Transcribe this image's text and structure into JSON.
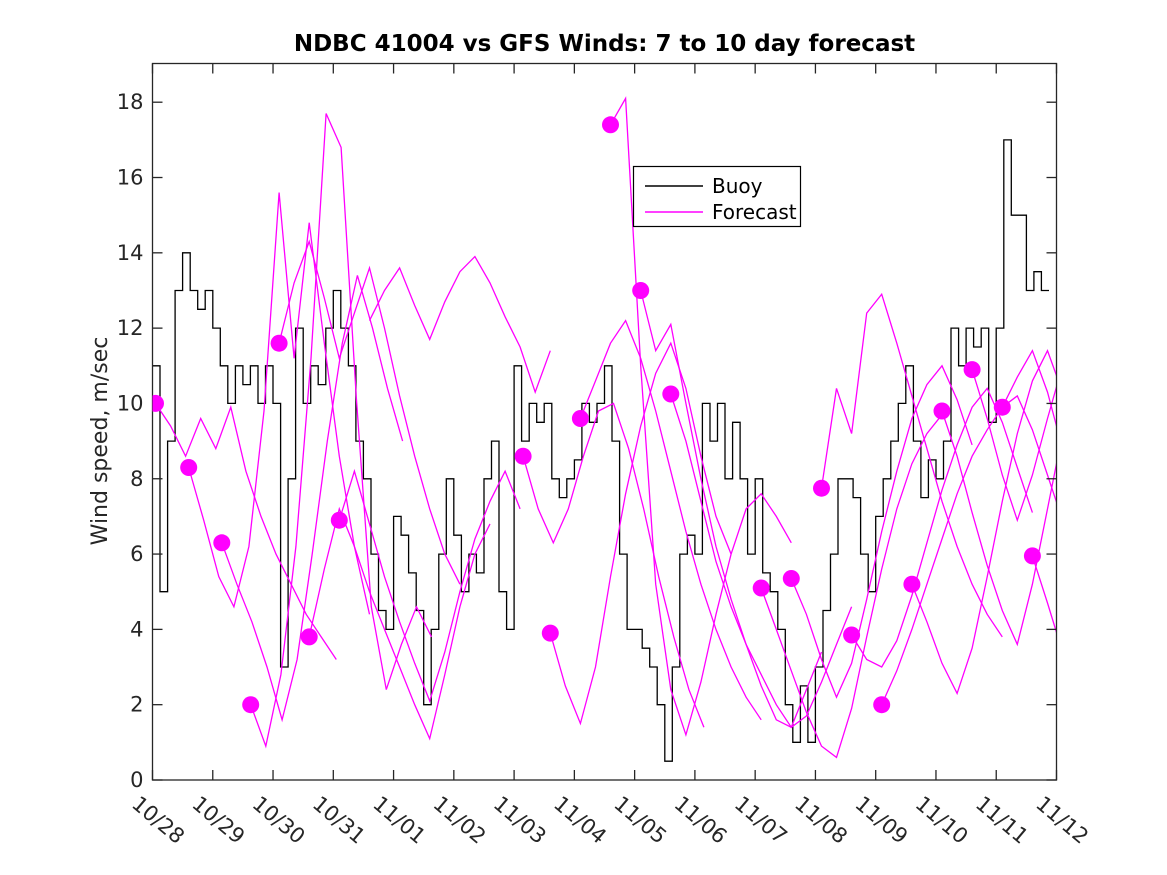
{
  "title": "NDBC 41004 vs GFS Winds: 7 to 10 day forecast",
  "legend": {
    "items": [
      {
        "label": "Buoy",
        "color": "#000000"
      },
      {
        "label": "Forecast",
        "color": "#ff00ff"
      }
    ]
  },
  "axes": {
    "ylabel": "Wind speed, m/sec",
    "xlabel": "",
    "y_ticks": [
      0,
      2,
      4,
      6,
      8,
      10,
      12,
      14,
      16,
      18
    ],
    "x_tick_labels": [
      "10/28",
      "10/29",
      "10/30",
      "10/31",
      "11/01",
      "11/02",
      "11/03",
      "11/04",
      "11/05",
      "11/06",
      "11/07",
      "11/08",
      "11/09",
      "11/10",
      "11/11",
      "11/12"
    ]
  },
  "chart_data": {
    "type": "line",
    "title": "NDBC 41004 vs GFS Winds: 7 to 10 day forecast",
    "xlabel": "",
    "ylabel": "Wind speed, m/sec",
    "ylim": [
      0,
      19
    ],
    "xlim_days": [
      0,
      15
    ],
    "grid": false,
    "legend_position": "upper-center-right",
    "x_axis": {
      "tick_labels": [
        "10/28",
        "10/29",
        "10/30",
        "10/31",
        "11/01",
        "11/02",
        "11/03",
        "11/04",
        "11/05",
        "11/06",
        "11/07",
        "11/08",
        "11/09",
        "11/10",
        "11/11",
        "11/12"
      ],
      "units": "days, ticks every 1 day, labels rotated"
    },
    "buoy": {
      "name": "Buoy",
      "color": "#000000",
      "style": "stairstep",
      "start_day": 0,
      "step_days": 0.125,
      "values": [
        11,
        5,
        9,
        13,
        14,
        13,
        12.5,
        13,
        12,
        11,
        10,
        11,
        10.5,
        11,
        10,
        11,
        10,
        3,
        8,
        12,
        10,
        11,
        10.5,
        12,
        13,
        12,
        11,
        9,
        8,
        6,
        4.5,
        4,
        7,
        6.5,
        5.5,
        4.5,
        2,
        4,
        6,
        8,
        6.5,
        5,
        6,
        5.5,
        8,
        9,
        5,
        4,
        11,
        9,
        10,
        9.5,
        10,
        8,
        7.5,
        8,
        8.5,
        10,
        9.5,
        10,
        11,
        9,
        6,
        4,
        4,
        3.5,
        3,
        2,
        0.5,
        3,
        6,
        6.5,
        6,
        10,
        9,
        10,
        8,
        9.5,
        8,
        6,
        8,
        5.5,
        5,
        4,
        2,
        1,
        2.5,
        1,
        3,
        4.5,
        6,
        8,
        8,
        7.5,
        6,
        5,
        7,
        8,
        9,
        10,
        11,
        9,
        7.5,
        8.5,
        8,
        9,
        12,
        11,
        12,
        11.5,
        12,
        9.5,
        12,
        17,
        15,
        15,
        13,
        13.5,
        13,
        13
      ]
    },
    "forecast": {
      "name": "Forecast",
      "color": "#ff00ff",
      "style": "line-with-start-dot",
      "step_days": 0.25,
      "runs": [
        {
          "start_day": 0.05,
          "dot": true,
          "values": [
            10,
            9.4,
            8.6,
            9.6,
            8.8,
            9.9,
            8.2,
            7,
            6,
            5.2,
            4.4,
            3.8,
            3.2
          ]
        },
        {
          "start_day": 0.6,
          "dot": true,
          "values": [
            8.3,
            6.9,
            5.4,
            4.6,
            6.2,
            9.8,
            15.6,
            11.2,
            14.8,
            11.6,
            8.6,
            6.2,
            4.4
          ]
        },
        {
          "start_day": 1.15,
          "dot": true,
          "values": [
            6.3,
            5.2,
            4.2,
            3,
            1.6,
            3.2,
            6,
            9,
            11.6,
            13.4,
            12,
            10.4,
            9
          ]
        },
        {
          "start_day": 1.63,
          "dot": true,
          "values": [
            2,
            0.9,
            2.8,
            6.2,
            11.2,
            17.7,
            16.8,
            10.2,
            4.6,
            2.4,
            3.6,
            4.6,
            3.8
          ]
        },
        {
          "start_day": 2.1,
          "dot": true,
          "values": [
            11.6,
            13.2,
            14.3,
            12.8,
            11.2,
            12.4,
            13.6,
            12,
            10.2,
            8.6,
            7.2,
            6,
            5.2
          ]
        },
        {
          "start_day": 2.6,
          "dot": true,
          "values": [
            3.8,
            5.6,
            7.2,
            6.2,
            5,
            4,
            3,
            2,
            1.1,
            2.8,
            4.6,
            6,
            6.8
          ]
        },
        {
          "start_day": 3.1,
          "dot": true,
          "values": [
            6.9,
            8.2,
            6.8,
            5.4,
            4.2,
            3.1,
            2.1,
            3.4,
            5,
            6.4,
            7.4,
            8.2,
            7.2
          ]
        },
        {
          "start_day": 3.6,
          "dot": false,
          "values": [
            12.2,
            13,
            13.6,
            12.6,
            11.7,
            12.7,
            13.5,
            13.9,
            13.2,
            12.3,
            11.5,
            10.3,
            11.4
          ]
        },
        {
          "start_day": 6.15,
          "dot": true,
          "values": [
            8.6,
            7.2,
            6.3,
            7.2,
            8.6,
            9.8,
            10,
            8.8,
            7.2,
            5.4,
            3.8,
            2.4,
            1.4
          ]
        },
        {
          "start_day": 6.6,
          "dot": true,
          "values": [
            3.9,
            2.5,
            1.5,
            3,
            5.4,
            7.6,
            9.4,
            10.8,
            11.6,
            10.4,
            8.6,
            7,
            6
          ]
        },
        {
          "start_day": 7.1,
          "dot": true,
          "values": [
            9.6,
            10.6,
            11.6,
            12.2,
            11.2,
            9.8,
            8.2,
            6.6,
            5.2,
            4,
            3,
            2.2,
            1.6
          ]
        },
        {
          "start_day": 7.6,
          "dot": true,
          "values": [
            17.4,
            18.1,
            11,
            5.2,
            2.4,
            1.2,
            2.6,
            4.4,
            6,
            7.2,
            7.6,
            7,
            6.3
          ]
        },
        {
          "start_day": 8.1,
          "dot": true,
          "values": [
            13,
            11.4,
            12.1,
            10,
            8,
            6.2,
            4.8,
            3.6,
            2.5,
            1.6,
            1.4,
            2.4,
            3.4
          ]
        },
        {
          "start_day": 8.6,
          "dot": true,
          "values": [
            10.25,
            9,
            7.4,
            5.8,
            4.6,
            3.6,
            2.8,
            2,
            1.4,
            1.7,
            2.6,
            3.6,
            4.6
          ]
        },
        {
          "start_day": 10.1,
          "dot": true,
          "values": [
            5.1,
            4,
            2.9,
            1.8,
            0.9,
            0.6,
            1.9,
            3.8,
            5.6,
            7.2,
            8.4,
            9.2,
            9.7
          ]
        },
        {
          "start_day": 10.6,
          "dot": true,
          "values": [
            5.35,
            4.4,
            3.2,
            2.2,
            3.1,
            4.8,
            6.6,
            8.2,
            9.6,
            10.5,
            11,
            10.1,
            8.9
          ]
        },
        {
          "start_day": 11.1,
          "dot": true,
          "values": [
            7.75,
            10.4,
            9.2,
            12.4,
            12.9,
            11.6,
            10.2,
            8.8,
            7.4,
            6.2,
            5.2,
            4.4,
            3.8
          ]
        },
        {
          "start_day": 11.6,
          "dot": true,
          "values": [
            3.85,
            3.2,
            3,
            3.7,
            4.9,
            6.3,
            7.7,
            8.9,
            9.9,
            10.4,
            9.5,
            8.3,
            7.1
          ]
        },
        {
          "start_day": 12.1,
          "dot": true,
          "values": [
            2,
            2.9,
            4,
            5.2,
            6.4,
            7.6,
            8.6,
            9.3,
            9.9,
            10.2,
            9.3,
            8.1,
            6.9
          ]
        },
        {
          "start_day": 12.6,
          "dot": true,
          "values": [
            5.2,
            4.2,
            3.1,
            2.3,
            3.5,
            5.4,
            7.4,
            9.2,
            10.6,
            11.4,
            10.3,
            8.7,
            6.9
          ]
        },
        {
          "start_day": 13.1,
          "dot": true,
          "values": [
            9.8,
            8.6,
            7.1,
            5.7,
            4.5,
            3.6,
            5.2,
            7.2,
            9.2,
            10.8,
            11.6,
            10.5,
            9.1
          ]
        },
        {
          "start_day": 13.6,
          "dot": true,
          "values": [
            10.9,
            9.6,
            8.1,
            6.9,
            8.1,
            9.6,
            11,
            11.8,
            10.9,
            9.2,
            7.4,
            5.6,
            4.2
          ]
        },
        {
          "start_day": 14.1,
          "dot": true,
          "values": [
            9.9,
            10.7,
            11.4,
            10.3,
            8.8,
            7.2,
            5.6,
            4,
            2.6,
            1.5,
            1,
            2.1,
            3.5
          ]
        },
        {
          "start_day": 14.6,
          "dot": true,
          "values": [
            5.95,
            4.7,
            3.4,
            2.2,
            1.1,
            2.3,
            4.2,
            6.2,
            8.2,
            9.8,
            11,
            11.4,
            11.3
          ]
        }
      ]
    }
  },
  "colors": {
    "background": "#ffffff",
    "axis": "#262626",
    "buoy_line": "#000000",
    "forecast_line": "#ff00ff",
    "forecast_marker": "#ff00ff"
  }
}
